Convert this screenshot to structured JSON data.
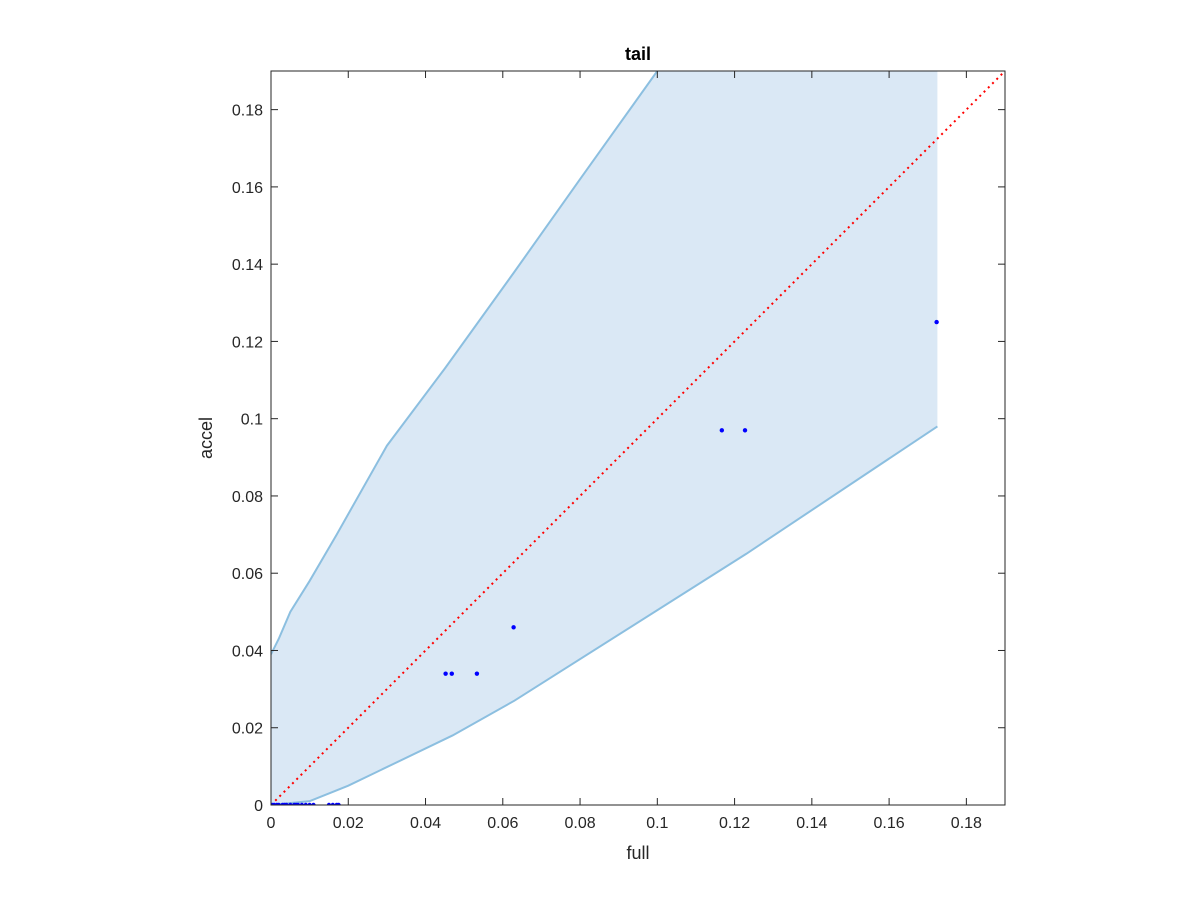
{
  "chart_data": {
    "type": "scatter",
    "title": "tail",
    "xlabel": "full",
    "ylabel": "accel",
    "xlim": [
      0,
      0.19
    ],
    "ylim": [
      0,
      0.19
    ],
    "x_ticks": [
      0,
      0.02,
      0.04,
      0.06,
      0.08,
      0.1,
      0.12,
      0.14,
      0.16,
      0.18
    ],
    "x_tick_labels": [
      "0",
      "0.02",
      "0.04",
      "0.06",
      "0.08",
      "0.1",
      "0.12",
      "0.14",
      "0.16",
      "0.18"
    ],
    "y_ticks": [
      0,
      0.02,
      0.04,
      0.06,
      0.08,
      0.1,
      0.12,
      0.14,
      0.16,
      0.18
    ],
    "y_tick_labels": [
      "0",
      "0.02",
      "0.04",
      "0.06",
      "0.08",
      "0.1",
      "0.12",
      "0.14",
      "0.16",
      "0.18"
    ],
    "grid": false,
    "band": {
      "upper": [
        [
          0,
          0.039
        ],
        [
          0.002,
          0.043
        ],
        [
          0.005,
          0.05
        ],
        [
          0.01,
          0.058
        ],
        [
          0.017,
          0.07
        ],
        [
          0.03,
          0.093
        ],
        [
          0.045,
          0.113
        ],
        [
          0.063,
          0.138
        ],
        [
          0.08,
          0.162
        ],
        [
          0.1,
          0.19
        ]
      ],
      "right_x": 0.1725,
      "lower": [
        [
          0,
          0
        ],
        [
          0.01,
          0.001
        ],
        [
          0.015,
          0.003
        ],
        [
          0.02,
          0.005
        ],
        [
          0.047,
          0.018
        ],
        [
          0.063,
          0.027
        ],
        [
          0.123,
          0.065
        ],
        [
          0.1725,
          0.098
        ]
      ],
      "fill_color": "#dae8f5",
      "line_color": "#8cbfe0"
    },
    "reference_line": {
      "from": [
        0,
        0
      ],
      "to": [
        0.19,
        0.19
      ],
      "color": "#ff0000",
      "style": "dotted"
    },
    "series": [
      {
        "marker_color": "#0000ff",
        "points": [
          [
            0.0003,
            0
          ],
          [
            0.0008,
            0
          ],
          [
            0.0015,
            0
          ],
          [
            0.002,
            0
          ],
          [
            0.003,
            0
          ],
          [
            0.0035,
            0
          ],
          [
            0.004,
            0
          ],
          [
            0.005,
            0
          ],
          [
            0.006,
            0
          ],
          [
            0.0065,
            0
          ],
          [
            0.007,
            0
          ],
          [
            0.008,
            0
          ],
          [
            0.009,
            0
          ],
          [
            0.01,
            0
          ],
          [
            0.011,
            0
          ],
          [
            0.015,
            0
          ],
          [
            0.016,
            0
          ],
          [
            0.017,
            0
          ],
          [
            0.0175,
            0
          ],
          [
            0.0452,
            0.034
          ],
          [
            0.0468,
            0.034
          ],
          [
            0.0533,
            0.034
          ],
          [
            0.0628,
            0.046
          ],
          [
            0.1167,
            0.097
          ],
          [
            0.1227,
            0.097
          ],
          [
            0.1723,
            0.125
          ]
        ]
      }
    ]
  }
}
